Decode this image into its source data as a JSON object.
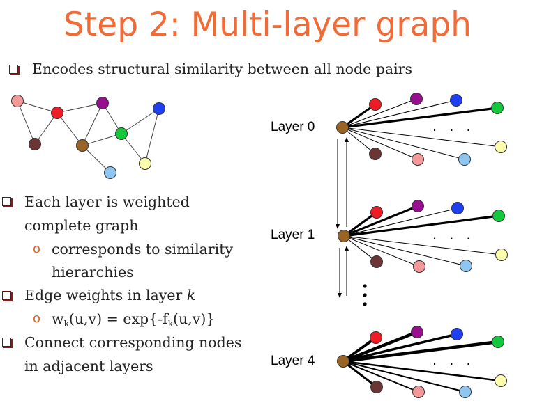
{
  "title": "Step 2: Multi-layer graph",
  "bullets": {
    "b1": "Encodes structural similarity between all node pairs",
    "b2_line1": "Each layer is weighted",
    "b2_line2": "complete graph",
    "b2_sub_line1": "corresponds to similarity",
    "b2_sub_line2": "hierarchies",
    "b3_text": "Edge weights in layer ",
    "b3_var": "k",
    "b3_sub_w": "w",
    "b3_sub_k": "k",
    "b3_sub_mid": "(u,v) = exp{-f",
    "b3_sub_k2": "k",
    "b3_sub_end": "(u,v)}",
    "b4_line1": "Connect corresponding nodes",
    "b4_line2": "in adjacent layers"
  },
  "layers": [
    {
      "label": "Layer 0",
      "ellipsis": ". . ."
    },
    {
      "label": "Layer 1",
      "ellipsis": ". . ."
    },
    {
      "label": "Layer 4",
      "ellipsis": ". . ."
    }
  ],
  "colors": {
    "title": "#f26a35",
    "pink": "#f4999a",
    "red": "#ee1c25",
    "purple": "#960f8e",
    "blue": "#1f3ff0",
    "green": "#13c83c",
    "brown": "#9a6524",
    "maroon": "#6b3535",
    "lightblue": "#8ec6f2",
    "yellow": "#fdfdae"
  }
}
